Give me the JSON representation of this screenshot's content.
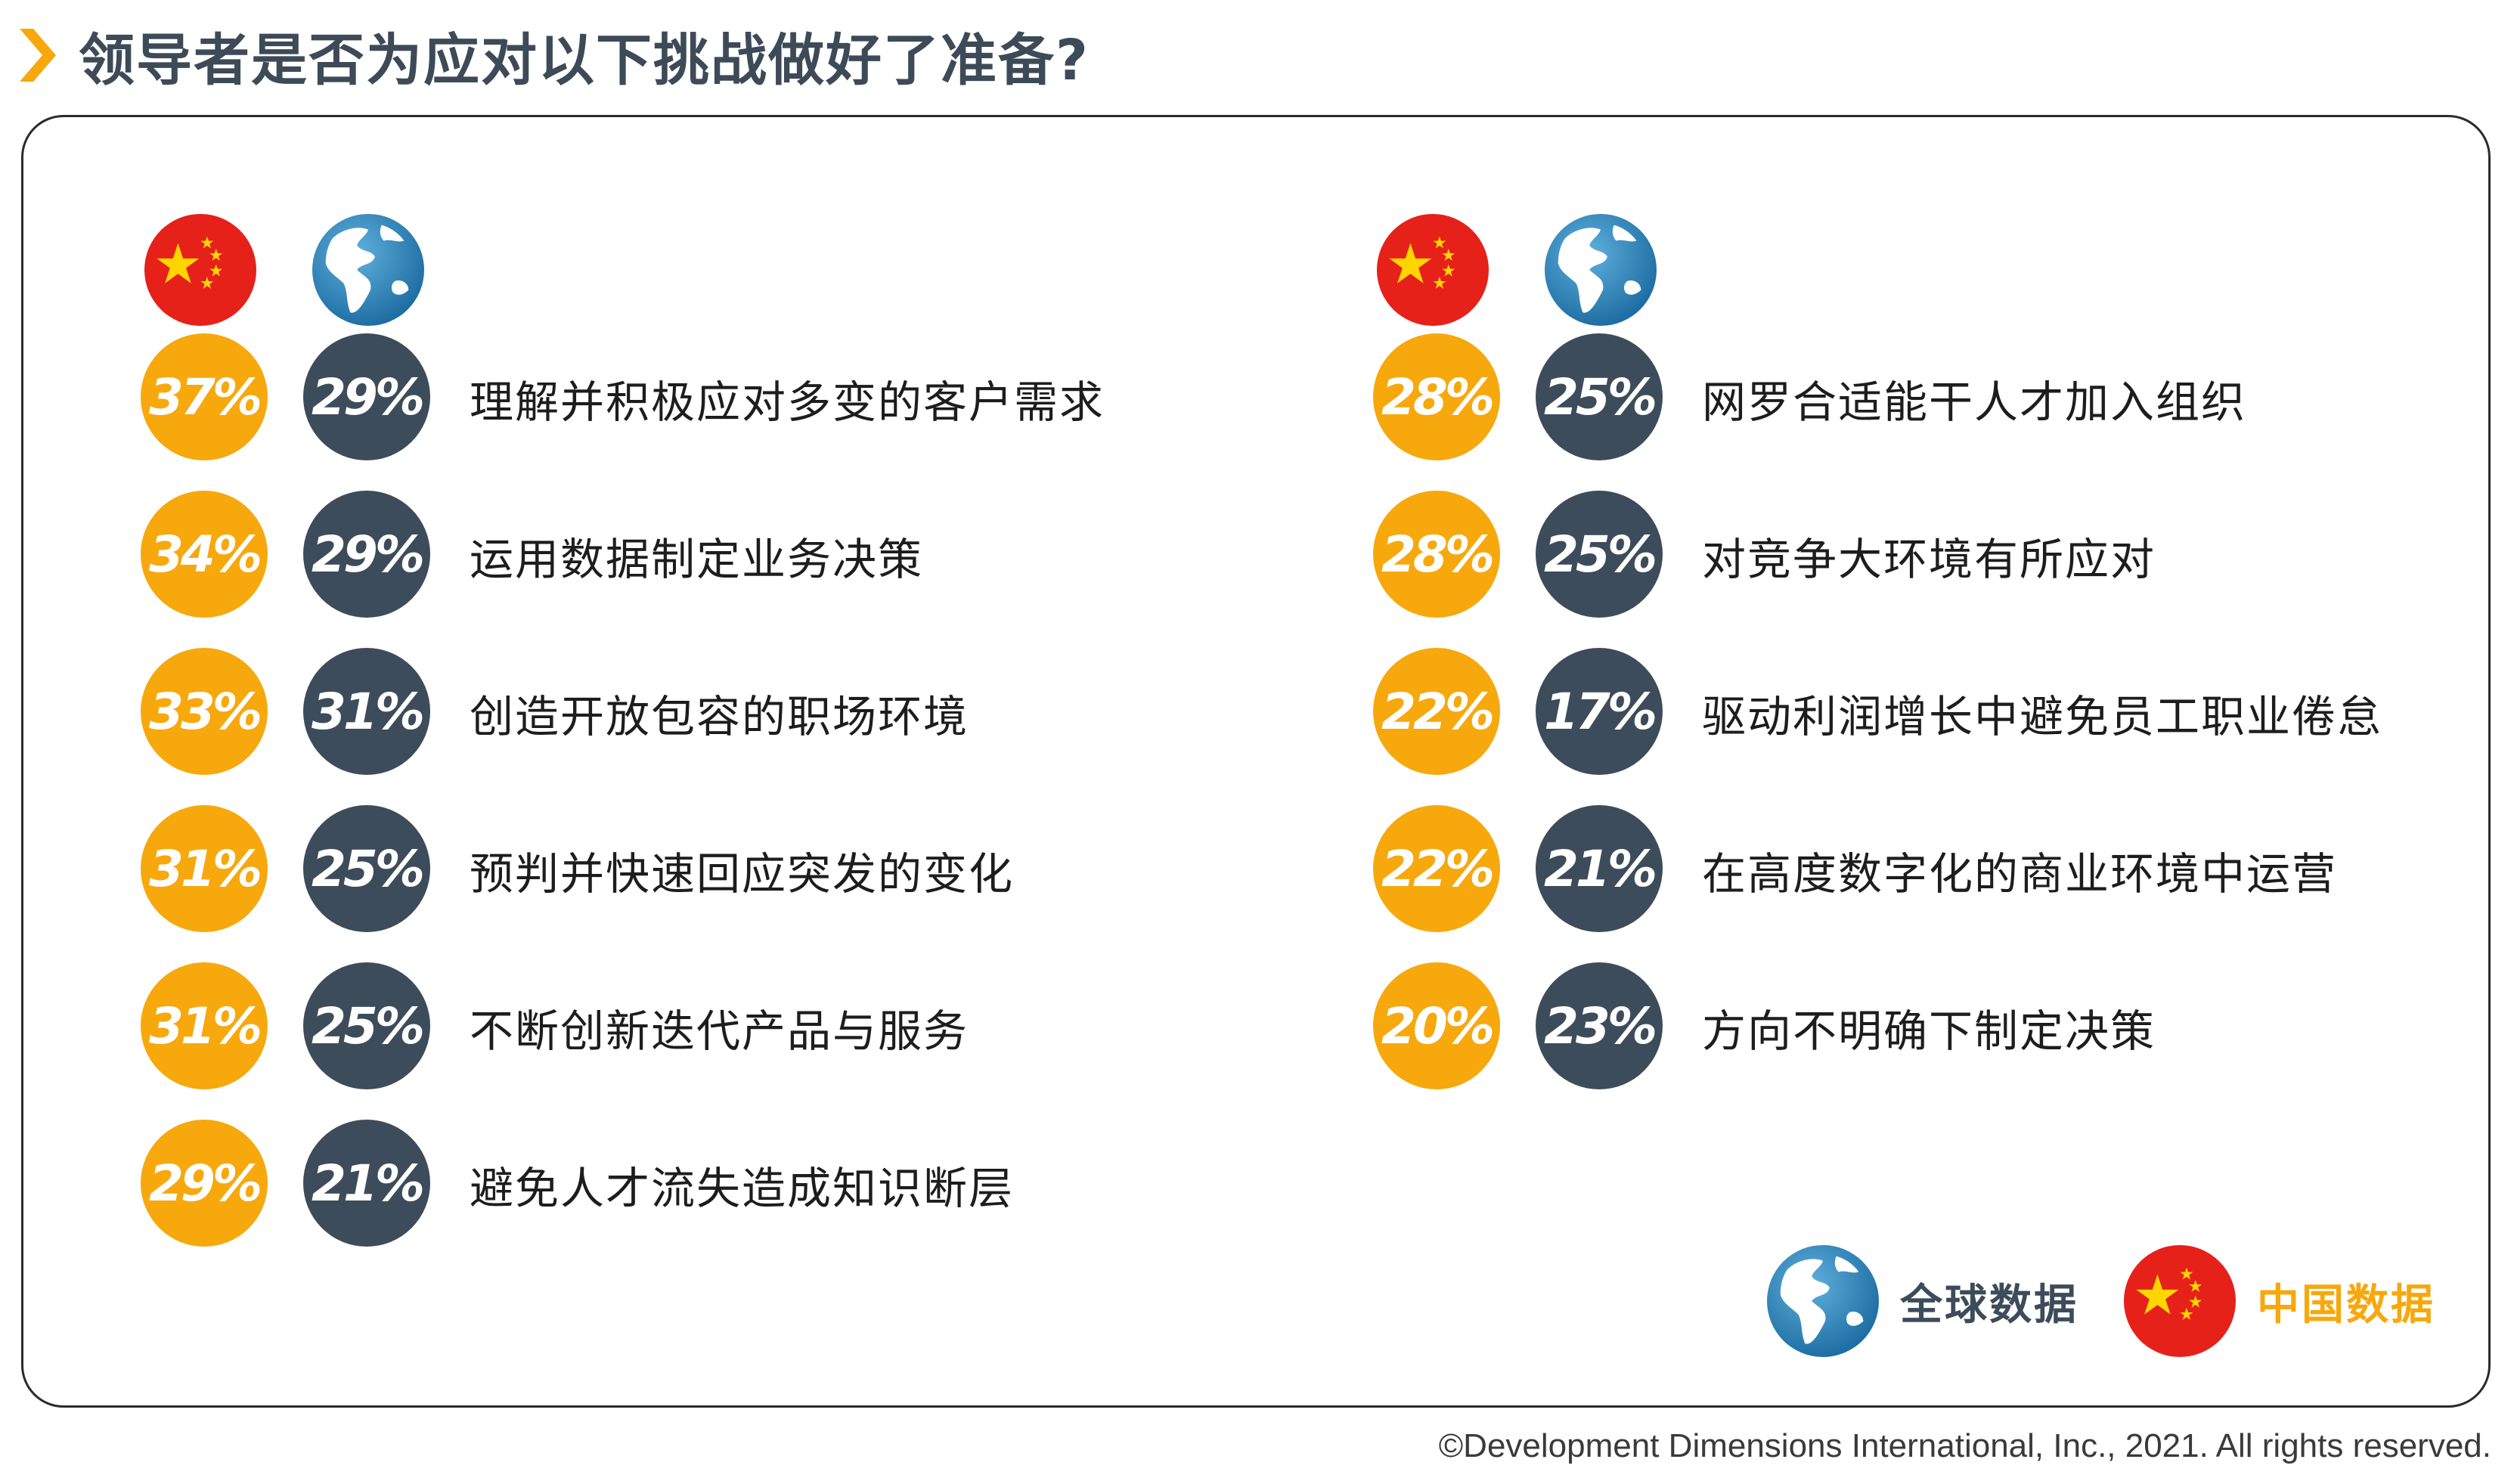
{
  "title": "领导者是否为应对以下挑战做好了准备?",
  "colors": {
    "china": "#f7a80c",
    "global": "#3d4c5b",
    "accent": "#f7a80c"
  },
  "icons": {
    "china": "china-flag-icon",
    "global": "globe-icon"
  },
  "legend": {
    "global_label": "全球数据",
    "china_label": "中国数据"
  },
  "copyright": "©Development Dimensions International, Inc., 2021. All rights reserved.",
  "chart_data": {
    "type": "table",
    "series": [
      {
        "name": "中国数据",
        "values": [
          37,
          34,
          33,
          31,
          31,
          29,
          28,
          28,
          22,
          22,
          20
        ]
      },
      {
        "name": "全球数据",
        "values": [
          29,
          29,
          31,
          25,
          25,
          21,
          25,
          25,
          17,
          21,
          23
        ]
      }
    ],
    "categories": [
      "理解并积极应对多变的客户需求",
      "运用数据制定业务决策",
      "创造开放包容的职场环境",
      "预判并快速回应突发的变化",
      "不断创新迭代产品与服务",
      "避免人才流失造成知识断层",
      "网罗合适能干人才加入组织",
      "对竞争大环境有所应对",
      "驱动利润增长中避免员工职业倦怠",
      "在高度数字化的商业环境中运营",
      "方向不明确下制定决策"
    ],
    "rows": [
      {
        "china": "37%",
        "global": "29%",
        "label": "理解并积极应对多变的客户需求"
      },
      {
        "china": "34%",
        "global": "29%",
        "label": "运用数据制定业务决策"
      },
      {
        "china": "33%",
        "global": "31%",
        "label": "创造开放包容的职场环境"
      },
      {
        "china": "31%",
        "global": "25%",
        "label": "预判并快速回应突发的变化"
      },
      {
        "china": "31%",
        "global": "25%",
        "label": "不断创新迭代产品与服务"
      },
      {
        "china": "29%",
        "global": "21%",
        "label": "避免人才流失造成知识断层"
      },
      {
        "china": "28%",
        "global": "25%",
        "label": "网罗合适能干人才加入组织"
      },
      {
        "china": "28%",
        "global": "25%",
        "label": "对竞争大环境有所应对"
      },
      {
        "china": "22%",
        "global": "17%",
        "label": "驱动利润增长中避免员工职业倦怠"
      },
      {
        "china": "22%",
        "global": "21%",
        "label": "在高度数字化的商业环境中运营"
      },
      {
        "china": "20%",
        "global": "23%",
        "label": "方向不明确下制定决策"
      }
    ]
  }
}
